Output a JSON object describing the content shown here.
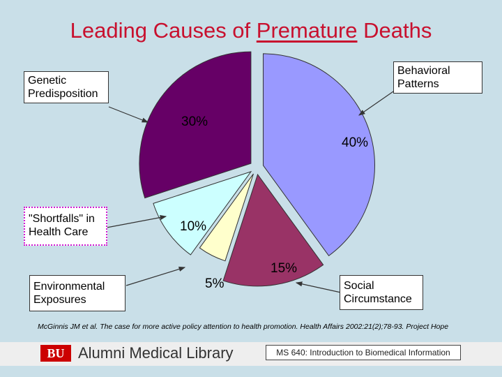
{
  "slide": {
    "title_pre": "Leading Causes of ",
    "title_emph": "Premature",
    "title_post": " Deaths",
    "citation": "McGinnis JM et al. The case for more active policy attention to health promotion. Health Affairs 2002:21(2);78-93.  Project Hope",
    "footer": {
      "logo_text": "BU",
      "library": "Alumni Medical Library",
      "course": "MS 640: Introduction to Biomedical Information"
    }
  },
  "chart_data": {
    "type": "pie",
    "title": "Leading Causes of Premature Deaths",
    "exploded": true,
    "slices": [
      {
        "name": "Behavioral Patterns",
        "value": 40,
        "label": "40%",
        "color": "#9999ff"
      },
      {
        "name": "Social Circumstance",
        "value": 15,
        "label": "15%",
        "color": "#993366"
      },
      {
        "name": "Environmental Exposures",
        "value": 5,
        "label": "5%",
        "color": "#ffffcc"
      },
      {
        "name": "\"Shortfalls\" in Health Care",
        "value": 10,
        "label": "10%",
        "color": "#ccffff"
      },
      {
        "name": "Genetic Predisposition",
        "value": 30,
        "label": "30%",
        "color": "#660066"
      }
    ],
    "callouts": {
      "behavioral": [
        "Behavioral",
        "Patterns"
      ],
      "social": [
        "Social",
        "Circumstance"
      ],
      "environmental": [
        "Environmental",
        "Exposures"
      ],
      "shortfalls": [
        "\"Shortfalls\" in",
        "Health Care"
      ],
      "genetic": [
        "Genetic",
        "Predisposition"
      ]
    }
  }
}
